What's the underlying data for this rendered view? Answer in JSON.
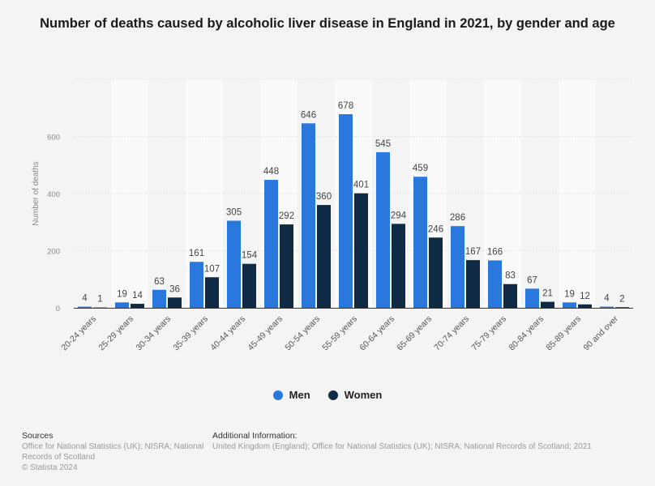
{
  "chart_data": {
    "type": "bar",
    "title": "Number of deaths caused by alcoholic liver disease in England in 2021, by gender and age",
    "ylabel": "Number of deaths",
    "xlabel": "",
    "ylim": [
      0,
      800
    ],
    "yticks": [
      0,
      200,
      400,
      600
    ],
    "grid": true,
    "legend_position": "bottom",
    "categories": [
      "20-24 years",
      "25-29 years",
      "30-34 years",
      "35-39 years",
      "40-44 years",
      "45-49 years",
      "50-54 years",
      "55-59 years",
      "60-64 years",
      "65-69 years",
      "70-74 years",
      "75-79 years",
      "80-84 years",
      "85-89 years",
      "90 and over"
    ],
    "series": [
      {
        "name": "Men",
        "color": "#2a78de",
        "values": [
          4,
          19,
          63,
          161,
          305,
          448,
          646,
          678,
          545,
          459,
          286,
          166,
          67,
          19,
          4
        ]
      },
      {
        "name": "Women",
        "color": "#0f2a45",
        "values": [
          1,
          14,
          36,
          107,
          154,
          292,
          360,
          401,
          294,
          246,
          167,
          83,
          21,
          12,
          2
        ]
      }
    ]
  },
  "footer": {
    "sources_heading": "Sources",
    "sources_text": "Office for National Statistics (UK); NISRA; National Records of Scotland",
    "copyright": "© Statista 2024",
    "additional_heading": "Additional Information:",
    "additional_text": "United Kingdom (England); Office for National Statistics (UK); NISRA; National Records of Scotland; 2021"
  }
}
